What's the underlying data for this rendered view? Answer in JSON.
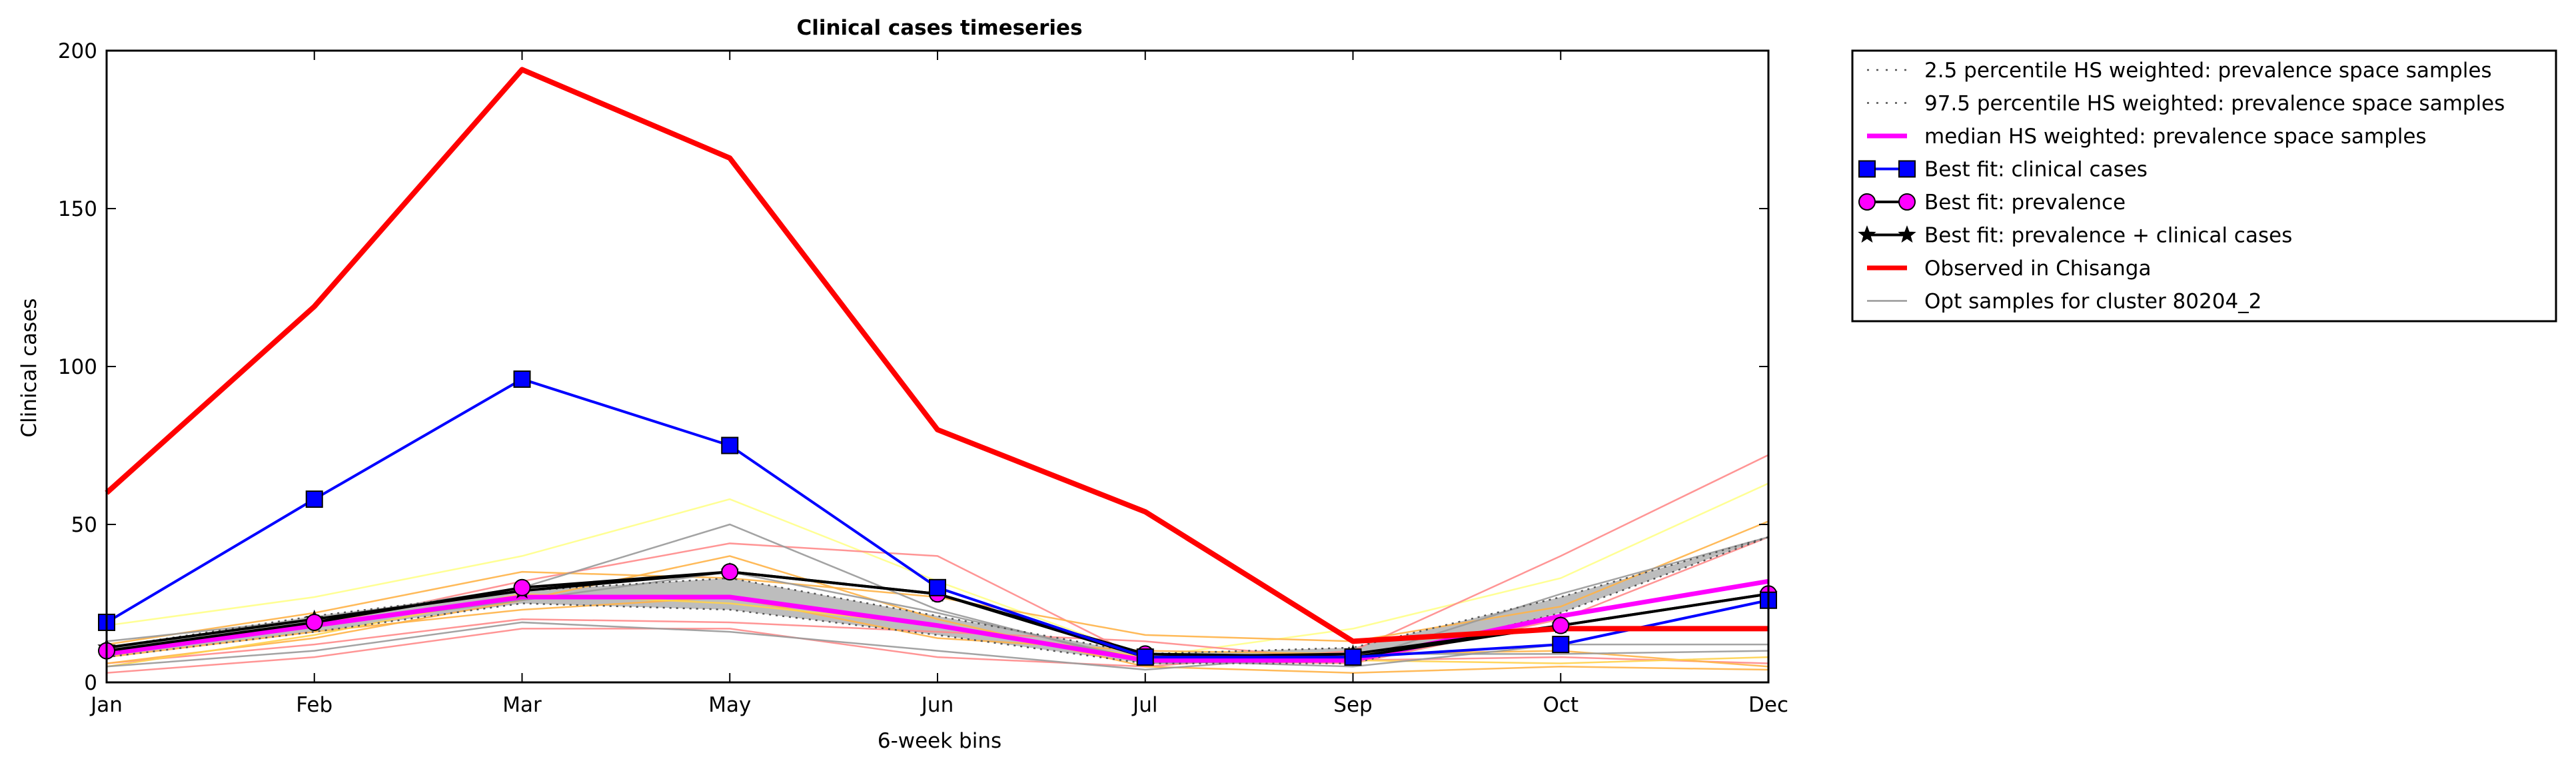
{
  "chart_data": {
    "type": "line",
    "title": "Clinical cases timeseries",
    "xlabel": "6-week bins",
    "ylabel": "Clinical cases",
    "categories": [
      "Jan",
      "Feb",
      "Mar",
      "May",
      "Jun",
      "Jul",
      "Sep",
      "Oct",
      "Dec"
    ],
    "ylim": [
      0,
      200
    ],
    "yticks": [
      0,
      50,
      100,
      150,
      200
    ],
    "grid": false,
    "legend_position": "outside right",
    "band": {
      "lower": [
        8,
        16,
        25,
        23,
        15,
        6,
        6,
        22,
        46
      ],
      "upper": [
        11,
        21,
        29,
        33,
        21,
        9,
        11,
        27,
        46
      ]
    },
    "percentile_lines": [
      {
        "name": "2.5 percentile HS weighted: prevalence space samples",
        "values": [
          8,
          16,
          25,
          23,
          15,
          6,
          6,
          22,
          46
        ]
      },
      {
        "name": "97.5 percentile HS weighted: prevalence space samples",
        "values": [
          11,
          21,
          29,
          33,
          21,
          9,
          11,
          27,
          46
        ]
      }
    ],
    "sample_lines": [
      {
        "color": "#ffff88",
        "values": [
          18,
          27,
          40,
          58,
          32,
          8,
          17,
          33,
          63
        ]
      },
      {
        "color": "#ff8a8a",
        "values": [
          3,
          8,
          17,
          17,
          8,
          5,
          10,
          40,
          72
        ]
      },
      {
        "color": "#ff8a8a",
        "values": [
          9,
          18,
          32,
          44,
          40,
          7,
          6,
          20,
          46
        ]
      },
      {
        "color": "#ff8a8a",
        "values": [
          6,
          12,
          20,
          19,
          16,
          13,
          7,
          8,
          6
        ]
      },
      {
        "color": "#ffb347",
        "values": [
          6,
          14,
          26,
          40,
          20,
          5,
          3,
          5,
          4
        ]
      },
      {
        "color": "#ffb347",
        "values": [
          12,
          22,
          35,
          33,
          27,
          15,
          13,
          24,
          51
        ]
      },
      {
        "color": "#ffb347",
        "values": [
          8,
          16,
          23,
          27,
          14,
          10,
          9,
          10,
          5
        ]
      },
      {
        "color": "#ffd24d",
        "values": [
          5,
          15,
          28,
          25,
          18,
          8,
          7,
          6,
          8
        ]
      },
      {
        "color": "#999999",
        "values": [
          13,
          20,
          30,
          50,
          23,
          6,
          7,
          28,
          46
        ]
      },
      {
        "color": "#999999",
        "values": [
          5,
          10,
          19,
          16,
          10,
          4,
          9,
          9,
          10
        ]
      },
      {
        "color": "#999999",
        "values": [
          10,
          18,
          26,
          35,
          22,
          7,
          5,
          12,
          12
        ]
      }
    ],
    "series": [
      {
        "name": "median HS weighted: prevalence space samples",
        "values": [
          9,
          18,
          27,
          27,
          18,
          7,
          7,
          21,
          32
        ]
      },
      {
        "name": "Best fit: clinical cases",
        "values": [
          19,
          58,
          96,
          75,
          30,
          8,
          8,
          12,
          26
        ]
      },
      {
        "name": "Best fit: prevalence",
        "values": [
          10,
          19,
          30,
          35,
          28,
          9,
          8,
          18,
          28
        ]
      },
      {
        "name": "Best fit: prevalence + clinical cases",
        "values": [
          11,
          20,
          29,
          35,
          28,
          8,
          9,
          18,
          28
        ]
      },
      {
        "name": "Observed in Chisanga",
        "values": [
          60,
          119,
          194,
          166,
          80,
          54,
          13,
          17,
          17
        ]
      }
    ],
    "legend": [
      {
        "label": "2.5 percentile HS weighted: prevalence space samples",
        "style": "dotted",
        "color": "#555555"
      },
      {
        "label": "97.5 percentile HS weighted: prevalence space samples",
        "style": "dotted",
        "color": "#555555"
      },
      {
        "label": "median HS weighted: prevalence space samples",
        "style": "thick",
        "color": "#ff00ff"
      },
      {
        "label": "Best fit: clinical cases",
        "style": "square",
        "color": "#0000ff"
      },
      {
        "label": "Best fit: prevalence",
        "style": "circle",
        "color": "#ff00ff"
      },
      {
        "label": "Best fit: prevalence + clinical cases",
        "style": "star",
        "color": "#000000"
      },
      {
        "label": "Observed in Chisanga",
        "style": "thick",
        "color": "#ff0000"
      },
      {
        "label": "Opt samples for cluster 80204_2",
        "style": "thin",
        "color": "#999999"
      }
    ]
  }
}
